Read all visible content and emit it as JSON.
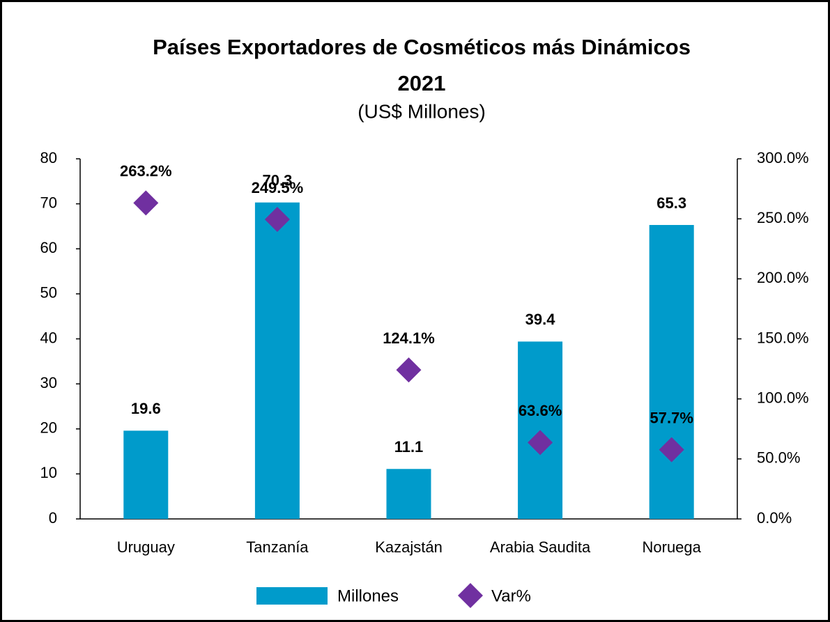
{
  "chart_data": {
    "type": "bar",
    "title": [
      "Países Exportadores de Cosméticos más Dinámicos",
      "2021"
    ],
    "subtitle": "(US$ Millones)",
    "categories": [
      "Uruguay",
      "Tanzanía",
      "Kazajstán",
      "Arabia Saudita",
      "Noruega"
    ],
    "series": [
      {
        "name": "Millones",
        "type": "bar",
        "color": "#009bcb",
        "values": [
          19.6,
          70.3,
          11.1,
          39.4,
          65.3
        ]
      },
      {
        "name": "Var%",
        "type": "scatter",
        "axis": "y2",
        "color": "#7030a0",
        "values": [
          263.2,
          249.5,
          124.1,
          63.6,
          57.7
        ],
        "value_labels": [
          "263.2%",
          "249.5%",
          "124.1%",
          "63.6%",
          "57.7%"
        ]
      }
    ],
    "ylim": [
      0,
      80
    ],
    "yticks": [
      0,
      10,
      20,
      30,
      40,
      50,
      60,
      70,
      80
    ],
    "y2lim": [
      0,
      300
    ],
    "y2ticks": [
      {
        "value": 0,
        "label": "0.0%"
      },
      {
        "value": 50,
        "label": "50.0%"
      },
      {
        "value": 100,
        "label": "100.0%"
      },
      {
        "value": 150,
        "label": "150.0%"
      },
      {
        "value": 200,
        "label": "200.0%"
      },
      {
        "value": 250,
        "label": "250.0%"
      },
      {
        "value": 300,
        "label": "300.0%"
      }
    ],
    "legend": "bottom"
  }
}
